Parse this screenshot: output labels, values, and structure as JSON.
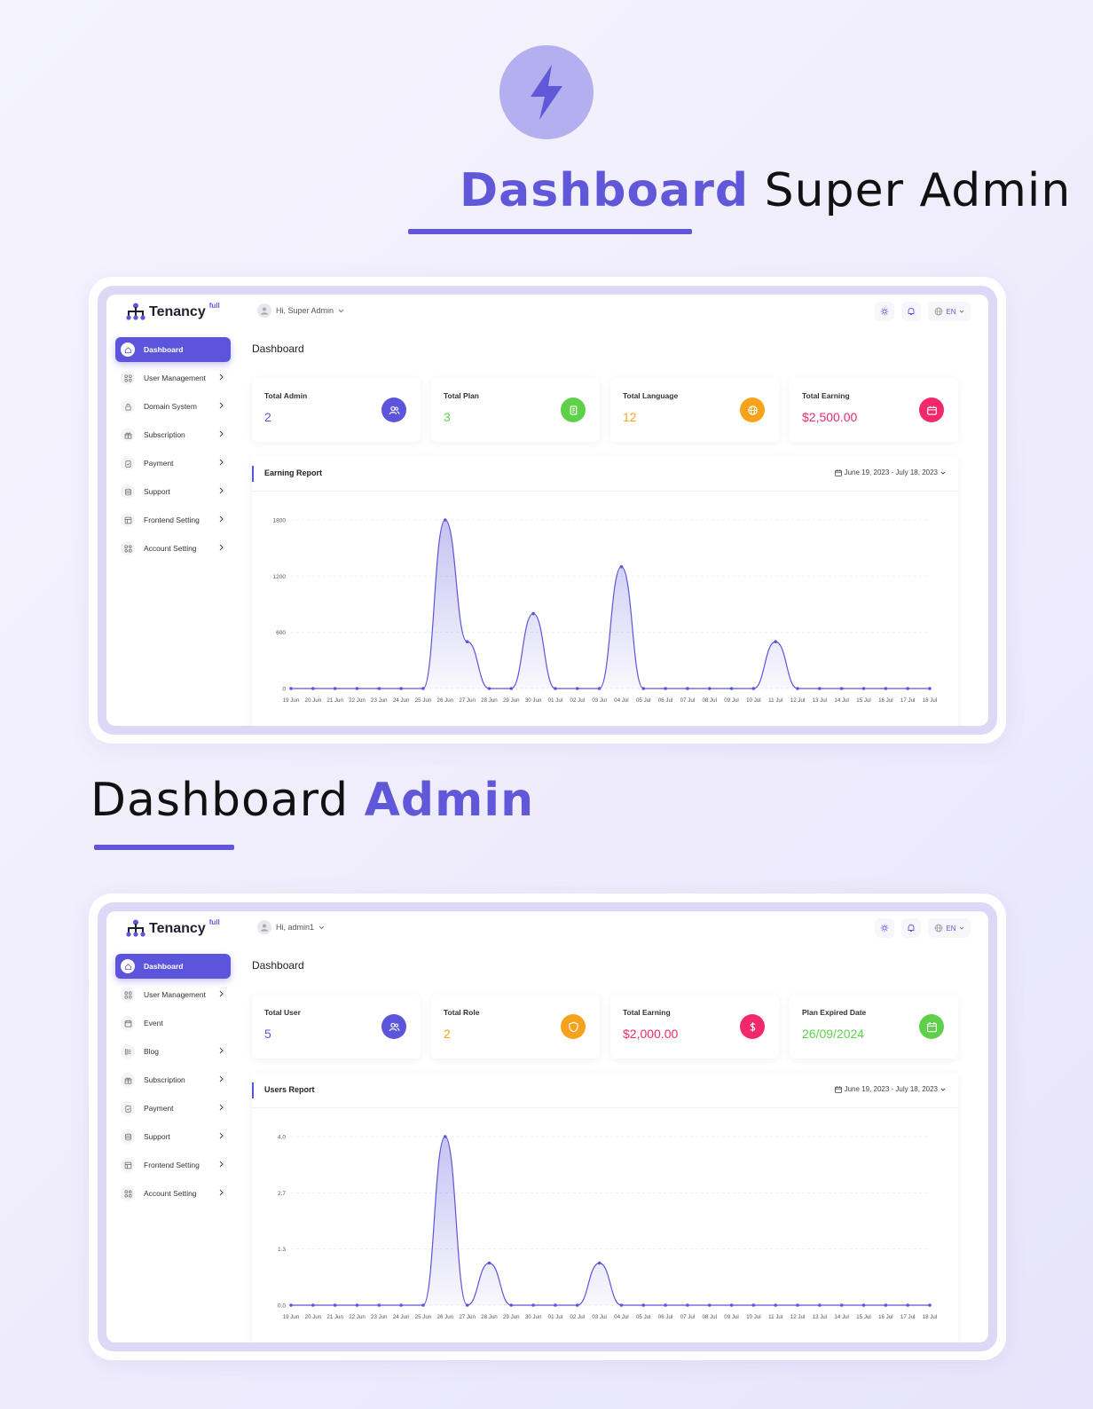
{
  "header": {
    "title1_accent": "Dashboard",
    "title1_rest": "Super Admin",
    "title2_rest": "Dashboard",
    "title2_accent": "Admin",
    "accent_color": "#6158d9"
  },
  "superadmin": {
    "brand": "Tenancy",
    "brand_sup": "full",
    "greeting": "Hi, Super Admin",
    "lang": "EN",
    "page_title": "Dashboard",
    "sidebar": [
      {
        "label": "Dashboard",
        "icon": "home-icon",
        "active": true
      },
      {
        "label": "User Management",
        "icon": "users-grid-icon"
      },
      {
        "label": "Domain System",
        "icon": "lock-icon"
      },
      {
        "label": "Subscription",
        "icon": "gift-icon"
      },
      {
        "label": "Payment",
        "icon": "clipboard-icon"
      },
      {
        "label": "Support",
        "icon": "database-icon"
      },
      {
        "label": "Frontend Setting",
        "icon": "layout-icon"
      },
      {
        "label": "Account Setting",
        "icon": "settings-grid-icon"
      }
    ],
    "cards": [
      {
        "label": "Total Admin",
        "value": "2",
        "color": "#5c54db",
        "icon": "users-icon"
      },
      {
        "label": "Total Plan",
        "value": "3",
        "color": "#5fd04a",
        "icon": "plan-icon"
      },
      {
        "label": "Total Language",
        "value": "12",
        "color": "#f7a21b",
        "icon": "globe-icon"
      },
      {
        "label": "Total Earning",
        "value": "$2,500.00",
        "color": "#f1286a",
        "icon": "wallet-icon"
      }
    ],
    "report_title": "Earning Report",
    "date_range": "June 19, 2023 - July 18, 2023"
  },
  "admin": {
    "brand": "Tenancy",
    "brand_sup": "full",
    "greeting": "Hi, admin1",
    "lang": "EN",
    "page_title": "Dashboard",
    "sidebar": [
      {
        "label": "Dashboard",
        "icon": "home-icon",
        "active": true
      },
      {
        "label": "User Management",
        "icon": "users-grid-icon"
      },
      {
        "label": "Event",
        "icon": "calendar-icon"
      },
      {
        "label": "Blog",
        "icon": "blog-icon"
      },
      {
        "label": "Subscription",
        "icon": "gift-icon"
      },
      {
        "label": "Payment",
        "icon": "clipboard-icon"
      },
      {
        "label": "Support",
        "icon": "database-icon"
      },
      {
        "label": "Frontend Setting",
        "icon": "layout-icon"
      },
      {
        "label": "Account Setting",
        "icon": "settings-grid-icon"
      }
    ],
    "cards": [
      {
        "label": "Total User",
        "value": "5",
        "color": "#5c54db",
        "icon": "users-icon"
      },
      {
        "label": "Total Role",
        "value": "2",
        "color": "#f7a21b",
        "icon": "shield-icon"
      },
      {
        "label": "Total Earning",
        "value": "$2,000.00",
        "color": "#f1286a",
        "icon": "dollar-icon"
      },
      {
        "label": "Plan Expired Date",
        "value": "26/09/2024",
        "color": "#5fd04a",
        "icon": "calendar-icon"
      }
    ],
    "report_title": "Users Report",
    "date_range": "June 19, 2023 - July 18, 2023"
  },
  "chart_data": [
    {
      "type": "area",
      "title": "Earning Report",
      "x": [
        "19 Jun",
        "20 Jun",
        "21 Jun",
        "22 Jun",
        "23 Jun",
        "24 Jun",
        "25 Jun",
        "26 Jun",
        "27 Jun",
        "28 Jun",
        "29 Jun",
        "30 Jun",
        "01 Jul",
        "02 Jul",
        "03 Jul",
        "04 Jul",
        "05 Jul",
        "06 Jul",
        "07 Jul",
        "08 Jul",
        "09 Jul",
        "10 Jul",
        "11 Jul",
        "12 Jul",
        "13 Jul",
        "14 Jul",
        "15 Jul",
        "16 Jul",
        "17 Jul",
        "18 Jul"
      ],
      "values": [
        0,
        0,
        0,
        0,
        0,
        0,
        0,
        1800,
        500,
        0,
        0,
        800,
        0,
        0,
        0,
        1300,
        0,
        0,
        0,
        0,
        0,
        0,
        500,
        0,
        0,
        0,
        0,
        0,
        0,
        0
      ],
      "y_ticks": [
        "0",
        "600",
        "1200",
        "1800"
      ],
      "ylim": [
        0,
        1800
      ],
      "grid": true
    },
    {
      "type": "area",
      "title": "Users Report",
      "x": [
        "19 Jun",
        "20 Jun",
        "21 Jun",
        "22 Jun",
        "23 Jun",
        "24 Jun",
        "25 Jun",
        "26 Jun",
        "27 Jun",
        "28 Jun",
        "29 Jun",
        "30 Jun",
        "01 Jul",
        "02 Jul",
        "03 Jul",
        "04 Jul",
        "05 Jul",
        "06 Jul",
        "07 Jul",
        "08 Jul",
        "09 Jul",
        "10 Jul",
        "11 Jul",
        "12 Jul",
        "13 Jul",
        "14 Jul",
        "15 Jul",
        "16 Jul",
        "17 Jul",
        "18 Jul"
      ],
      "values": [
        0,
        0,
        0,
        0,
        0,
        0,
        0,
        4,
        0,
        1,
        0,
        0,
        0,
        0,
        1,
        0,
        0,
        0,
        0,
        0,
        0,
        0,
        0,
        0,
        0,
        0,
        0,
        0,
        0,
        0
      ],
      "y_ticks": [
        "0.0",
        "1.3",
        "2.7",
        "4.0"
      ],
      "ylim": [
        0,
        4
      ],
      "grid": true
    }
  ]
}
